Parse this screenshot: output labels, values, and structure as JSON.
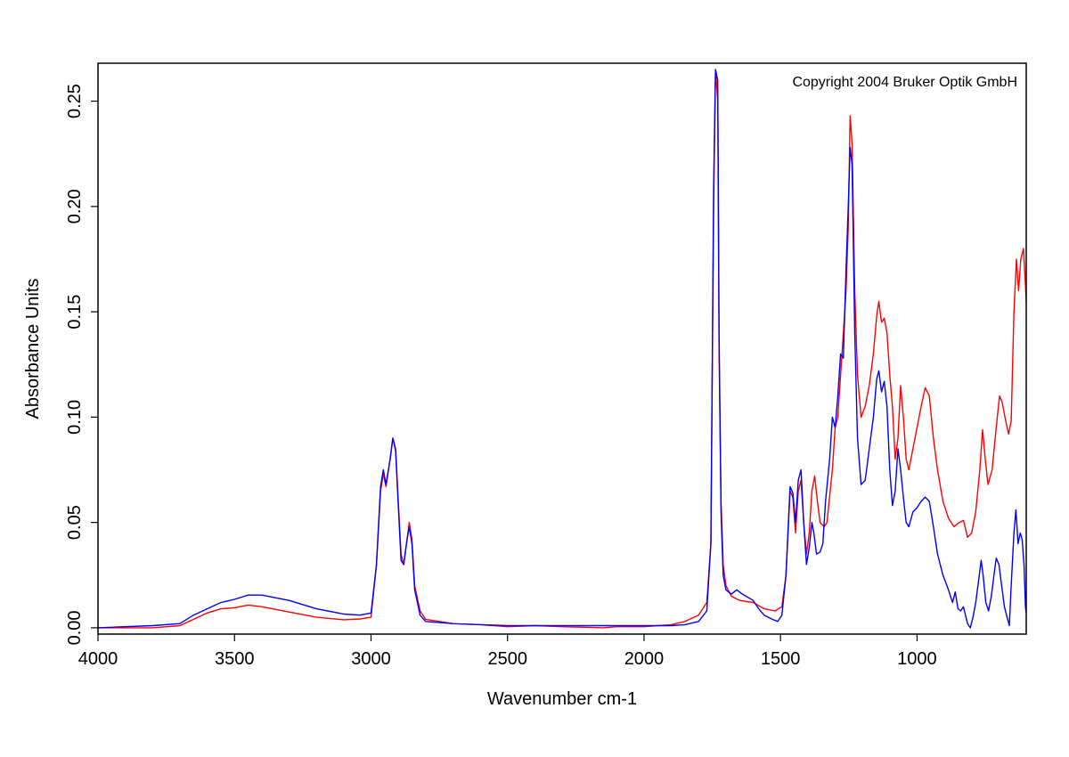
{
  "chart_data": {
    "type": "line",
    "xlabel": "Wavenumber cm-1",
    "ylabel": "Absorbance Units",
    "annotation": "Copyright 2004 Bruker Optik GmbH",
    "xlim": [
      4000,
      600
    ],
    "x_reversed": true,
    "ylim": [
      -0.003,
      0.268
    ],
    "grid": false,
    "legend": "none",
    "x_ticks": [
      4000,
      3500,
      3000,
      2500,
      2000,
      1500,
      1000
    ],
    "x_tick_labels": [
      "4000",
      "3500",
      "3000",
      "2500",
      "2000",
      "1500",
      "1000"
    ],
    "y_ticks": [
      0.0,
      0.05,
      0.1,
      0.15,
      0.2,
      0.25
    ],
    "y_tick_labels": [
      "0.00",
      "0.05",
      "0.10",
      "0.15",
      "0.20",
      "0.25"
    ],
    "series": [
      {
        "color": "#ff0000",
        "points": [
          [
            4000,
            0.0
          ],
          [
            3800,
            0.0
          ],
          [
            3700,
            0.001
          ],
          [
            3650,
            0.004
          ],
          [
            3600,
            0.007
          ],
          [
            3550,
            0.009
          ],
          [
            3500,
            0.0095
          ],
          [
            3450,
            0.0108
          ],
          [
            3400,
            0.01
          ],
          [
            3300,
            0.0075
          ],
          [
            3200,
            0.005
          ],
          [
            3100,
            0.0038
          ],
          [
            3040,
            0.0042
          ],
          [
            3000,
            0.005
          ],
          [
            2980,
            0.03
          ],
          [
            2965,
            0.065
          ],
          [
            2955,
            0.073
          ],
          [
            2945,
            0.067
          ],
          [
            2930,
            0.08
          ],
          [
            2920,
            0.09
          ],
          [
            2910,
            0.085
          ],
          [
            2900,
            0.06
          ],
          [
            2890,
            0.035
          ],
          [
            2880,
            0.03
          ],
          [
            2870,
            0.04
          ],
          [
            2860,
            0.05
          ],
          [
            2850,
            0.042
          ],
          [
            2840,
            0.02
          ],
          [
            2820,
            0.008
          ],
          [
            2800,
            0.004
          ],
          [
            2700,
            0.002
          ],
          [
            2600,
            0.0015
          ],
          [
            2500,
            0.0005
          ],
          [
            2400,
            0.001
          ],
          [
            2300,
            0.0005
          ],
          [
            2200,
            0.0002
          ],
          [
            2150,
            0.0
          ],
          [
            2100,
            0.0005
          ],
          [
            2000,
            0.0005
          ],
          [
            1950,
            0.001
          ],
          [
            1900,
            0.0015
          ],
          [
            1850,
            0.003
          ],
          [
            1800,
            0.006
          ],
          [
            1770,
            0.012
          ],
          [
            1755,
            0.04
          ],
          [
            1745,
            0.2
          ],
          [
            1738,
            0.265
          ],
          [
            1730,
            0.25
          ],
          [
            1725,
            0.13
          ],
          [
            1718,
            0.06
          ],
          [
            1710,
            0.03
          ],
          [
            1700,
            0.02
          ],
          [
            1680,
            0.015
          ],
          [
            1650,
            0.013
          ],
          [
            1600,
            0.012
          ],
          [
            1560,
            0.009
          ],
          [
            1520,
            0.008
          ],
          [
            1495,
            0.01
          ],
          [
            1480,
            0.025
          ],
          [
            1465,
            0.065
          ],
          [
            1455,
            0.062
          ],
          [
            1445,
            0.045
          ],
          [
            1435,
            0.065
          ],
          [
            1425,
            0.07
          ],
          [
            1415,
            0.05
          ],
          [
            1405,
            0.035
          ],
          [
            1395,
            0.045
          ],
          [
            1385,
            0.065
          ],
          [
            1375,
            0.072
          ],
          [
            1365,
            0.06
          ],
          [
            1355,
            0.05
          ],
          [
            1340,
            0.048
          ],
          [
            1330,
            0.05
          ],
          [
            1310,
            0.075
          ],
          [
            1300,
            0.095
          ],
          [
            1290,
            0.1
          ],
          [
            1280,
            0.12
          ],
          [
            1270,
            0.14
          ],
          [
            1260,
            0.16
          ],
          [
            1252,
            0.19
          ],
          [
            1245,
            0.243
          ],
          [
            1238,
            0.23
          ],
          [
            1228,
            0.16
          ],
          [
            1218,
            0.12
          ],
          [
            1205,
            0.1
          ],
          [
            1190,
            0.105
          ],
          [
            1175,
            0.115
          ],
          [
            1160,
            0.13
          ],
          [
            1148,
            0.148
          ],
          [
            1140,
            0.155
          ],
          [
            1130,
            0.145
          ],
          [
            1120,
            0.147
          ],
          [
            1110,
            0.14
          ],
          [
            1100,
            0.12
          ],
          [
            1090,
            0.105
          ],
          [
            1080,
            0.08
          ],
          [
            1070,
            0.09
          ],
          [
            1060,
            0.115
          ],
          [
            1050,
            0.1
          ],
          [
            1040,
            0.08
          ],
          [
            1030,
            0.075
          ],
          [
            1015,
            0.085
          ],
          [
            1000,
            0.095
          ],
          [
            985,
            0.105
          ],
          [
            970,
            0.114
          ],
          [
            955,
            0.11
          ],
          [
            940,
            0.09
          ],
          [
            925,
            0.075
          ],
          [
            905,
            0.06
          ],
          [
            885,
            0.052
          ],
          [
            865,
            0.048
          ],
          [
            845,
            0.05
          ],
          [
            830,
            0.051
          ],
          [
            815,
            0.043
          ],
          [
            800,
            0.045
          ],
          [
            785,
            0.055
          ],
          [
            770,
            0.075
          ],
          [
            760,
            0.094
          ],
          [
            750,
            0.08
          ],
          [
            740,
            0.068
          ],
          [
            725,
            0.075
          ],
          [
            710,
            0.095
          ],
          [
            698,
            0.11
          ],
          [
            688,
            0.107
          ],
          [
            678,
            0.1
          ],
          [
            665,
            0.092
          ],
          [
            655,
            0.098
          ],
          [
            645,
            0.15
          ],
          [
            636,
            0.175
          ],
          [
            628,
            0.16
          ],
          [
            620,
            0.175
          ],
          [
            610,
            0.18
          ],
          [
            603,
            0.163
          ],
          [
            600,
            0.155
          ]
        ]
      },
      {
        "color": "#0000ff",
        "points": [
          [
            4000,
            0.0
          ],
          [
            3800,
            0.001
          ],
          [
            3700,
            0.002
          ],
          [
            3650,
            0.006
          ],
          [
            3600,
            0.009
          ],
          [
            3550,
            0.012
          ],
          [
            3500,
            0.0135
          ],
          [
            3450,
            0.0155
          ],
          [
            3400,
            0.0155
          ],
          [
            3300,
            0.013
          ],
          [
            3200,
            0.009
          ],
          [
            3100,
            0.0065
          ],
          [
            3040,
            0.006
          ],
          [
            3000,
            0.007
          ],
          [
            2980,
            0.03
          ],
          [
            2965,
            0.067
          ],
          [
            2955,
            0.075
          ],
          [
            2945,
            0.068
          ],
          [
            2930,
            0.08
          ],
          [
            2920,
            0.09
          ],
          [
            2910,
            0.084
          ],
          [
            2900,
            0.058
          ],
          [
            2890,
            0.032
          ],
          [
            2880,
            0.03
          ],
          [
            2870,
            0.04
          ],
          [
            2860,
            0.048
          ],
          [
            2850,
            0.04
          ],
          [
            2840,
            0.018
          ],
          [
            2820,
            0.006
          ],
          [
            2800,
            0.003
          ],
          [
            2700,
            0.002
          ],
          [
            2600,
            0.0015
          ],
          [
            2500,
            0.001
          ],
          [
            2400,
            0.001
          ],
          [
            2300,
            0.001
          ],
          [
            2200,
            0.001
          ],
          [
            2100,
            0.001
          ],
          [
            2000,
            0.001
          ],
          [
            1950,
            0.001
          ],
          [
            1900,
            0.001
          ],
          [
            1850,
            0.0015
          ],
          [
            1800,
            0.003
          ],
          [
            1770,
            0.008
          ],
          [
            1755,
            0.04
          ],
          [
            1745,
            0.21
          ],
          [
            1738,
            0.265
          ],
          [
            1730,
            0.26
          ],
          [
            1725,
            0.14
          ],
          [
            1718,
            0.055
          ],
          [
            1710,
            0.025
          ],
          [
            1700,
            0.018
          ],
          [
            1680,
            0.016
          ],
          [
            1660,
            0.018
          ],
          [
            1640,
            0.016
          ],
          [
            1600,
            0.013
          ],
          [
            1580,
            0.009
          ],
          [
            1560,
            0.006
          ],
          [
            1530,
            0.004
          ],
          [
            1510,
            0.003
          ],
          [
            1495,
            0.006
          ],
          [
            1480,
            0.025
          ],
          [
            1465,
            0.067
          ],
          [
            1455,
            0.064
          ],
          [
            1445,
            0.05
          ],
          [
            1435,
            0.07
          ],
          [
            1425,
            0.075
          ],
          [
            1415,
            0.05
          ],
          [
            1405,
            0.03
          ],
          [
            1395,
            0.038
          ],
          [
            1385,
            0.05
          ],
          [
            1378,
            0.045
          ],
          [
            1368,
            0.035
          ],
          [
            1355,
            0.036
          ],
          [
            1345,
            0.04
          ],
          [
            1335,
            0.06
          ],
          [
            1320,
            0.08
          ],
          [
            1310,
            0.1
          ],
          [
            1300,
            0.095
          ],
          [
            1290,
            0.11
          ],
          [
            1280,
            0.13
          ],
          [
            1270,
            0.128
          ],
          [
            1260,
            0.17
          ],
          [
            1252,
            0.2
          ],
          [
            1245,
            0.228
          ],
          [
            1238,
            0.22
          ],
          [
            1228,
            0.14
          ],
          [
            1218,
            0.09
          ],
          [
            1205,
            0.068
          ],
          [
            1190,
            0.07
          ],
          [
            1175,
            0.085
          ],
          [
            1160,
            0.1
          ],
          [
            1148,
            0.118
          ],
          [
            1140,
            0.122
          ],
          [
            1130,
            0.112
          ],
          [
            1120,
            0.117
          ],
          [
            1110,
            0.105
          ],
          [
            1100,
            0.075
          ],
          [
            1090,
            0.058
          ],
          [
            1080,
            0.065
          ],
          [
            1070,
            0.085
          ],
          [
            1060,
            0.075
          ],
          [
            1050,
            0.062
          ],
          [
            1040,
            0.05
          ],
          [
            1030,
            0.048
          ],
          [
            1015,
            0.055
          ],
          [
            1000,
            0.057
          ],
          [
            985,
            0.06
          ],
          [
            970,
            0.062
          ],
          [
            955,
            0.06
          ],
          [
            940,
            0.048
          ],
          [
            925,
            0.035
          ],
          [
            905,
            0.025
          ],
          [
            885,
            0.018
          ],
          [
            870,
            0.012
          ],
          [
            860,
            0.017
          ],
          [
            850,
            0.009
          ],
          [
            840,
            0.008
          ],
          [
            830,
            0.01
          ],
          [
            815,
            0.002
          ],
          [
            805,
            0.0
          ],
          [
            795,
            0.005
          ],
          [
            785,
            0.012
          ],
          [
            775,
            0.022
          ],
          [
            765,
            0.032
          ],
          [
            758,
            0.025
          ],
          [
            748,
            0.012
          ],
          [
            738,
            0.008
          ],
          [
            728,
            0.015
          ],
          [
            718,
            0.025
          ],
          [
            710,
            0.033
          ],
          [
            700,
            0.03
          ],
          [
            690,
            0.02
          ],
          [
            680,
            0.01
          ],
          [
            670,
            0.005
          ],
          [
            662,
            0.001
          ],
          [
            655,
            0.02
          ],
          [
            645,
            0.045
          ],
          [
            638,
            0.056
          ],
          [
            630,
            0.04
          ],
          [
            622,
            0.045
          ],
          [
            615,
            0.042
          ],
          [
            608,
            0.03
          ],
          [
            603,
            0.01
          ],
          [
            600,
            0.007
          ]
        ]
      }
    ]
  }
}
